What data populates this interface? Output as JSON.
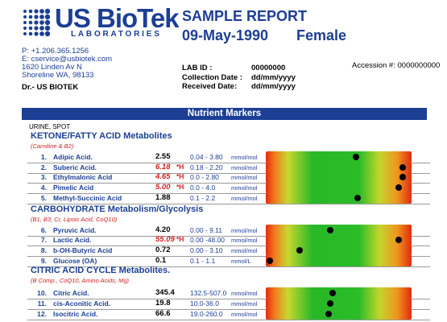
{
  "logo": {
    "name": "US BioTek",
    "sub": "LABORATORIES"
  },
  "report": {
    "title": "SAMPLE REPORT",
    "date": "09-May-1990",
    "gender": "Female"
  },
  "contact": {
    "phone": "P: +1.206.365.1256",
    "email": "E: cservice@usbiotek.com",
    "address1": "1620 Linden Av N",
    "address2": "Shoreline WA, 98133",
    "doctor": "Dr.- US BIOTEK"
  },
  "lab": {
    "id_label": "LAB ID :",
    "id_value": "00000000",
    "collection_label": "Collection Date :",
    "collection_value": "dd/mm/yyyy",
    "received_label": "Received Date:",
    "received_value": "dd/mm/yyyy",
    "accession": "Accession #: 0000000000"
  },
  "banner": "Nutrient Markers",
  "sample_type": "URINE, SPOT",
  "colors": {
    "brand": "#1c3f94",
    "flag": "#d22020"
  },
  "sections": [
    {
      "title": "KETONE/FATTY ACID Metabolites",
      "subtitle": "(Carnitine & B2)",
      "rows": [
        {
          "num": "1.",
          "name": "Adipic Acid.",
          "value": "2.55",
          "flag": "",
          "range": "0.04 - 3.80",
          "unit": "mmol/mol",
          "level": 0.62
        },
        {
          "num": "2.",
          "name": "Suberic Acid.",
          "value": "6.18",
          "flag": "*H",
          "range": "0.18 - 2.20",
          "unit": "mmol/mol",
          "level": 0.94
        },
        {
          "num": "3.",
          "name": "Ethylmalonic Acid",
          "value": "4.65",
          "flag": "*H",
          "range": "0.0 - 2.80",
          "unit": "mmol/mol",
          "level": 0.94
        },
        {
          "num": "4.",
          "name": "Pimelic Acid",
          "value": "5.00",
          "flag": "*H",
          "range": "0.0 - 4.0",
          "unit": "mmol/mol",
          "level": 0.91
        },
        {
          "num": "5.",
          "name": "Methyl-Succinic Acid",
          "value": "1.88",
          "flag": "",
          "range": "0.1 - 2.2",
          "unit": "mmol/mol",
          "level": 0.63
        }
      ]
    },
    {
      "title": "CARBOHYDRATE Metabolism/Glycolysis",
      "subtitle": "(B1, B3, Cr, Lipoic Acid, CoQ10)",
      "rows": [
        {
          "num": "6.",
          "name": "Pyruvic Acid.",
          "value": "4.20",
          "flag": "",
          "range": "0.00 - 9.11",
          "unit": "mmol/mol",
          "level": 0.44
        },
        {
          "num": "7.",
          "name": "Lactic Acid.",
          "value": "55.09",
          "flag": "*H",
          "range": "0.00 -48.00",
          "unit": "mmol/mol",
          "level": 0.91
        },
        {
          "num": "8.",
          "name": "b-OH-Butyric Acid",
          "value": "0.72",
          "flag": "",
          "range": "0.00 - 3.10",
          "unit": "mmol/mol",
          "level": 0.23
        },
        {
          "num": "9.",
          "name": "Glucose (OA)",
          "value": "0.1",
          "flag": "",
          "range": "0.1 - 1.1",
          "unit": "mmol/L",
          "level": 0.03
        }
      ]
    },
    {
      "title": "CITRIC ACID CYCLE Metabolites.",
      "subtitle": "(B Comp., CoQ10, Amino Acids, Mg)",
      "rows": [
        {
          "num": "10.",
          "name": "Citric Acid.",
          "value": "345.4",
          "flag": "",
          "range": "132.5-507.0",
          "unit": "mmol/mol",
          "level": 0.46
        },
        {
          "num": "11.",
          "name": "cis-Aconitic Acid.",
          "value": "19.8",
          "flag": "",
          "range": "10.0-36.0",
          "unit": "mmol/mol",
          "level": 0.44
        },
        {
          "num": "12.",
          "name": "Isocitric Acid.",
          "value": "66.6",
          "flag": "",
          "range": "19.0-260.0",
          "unit": "mmol/mol",
          "level": 0.43
        }
      ]
    }
  ]
}
